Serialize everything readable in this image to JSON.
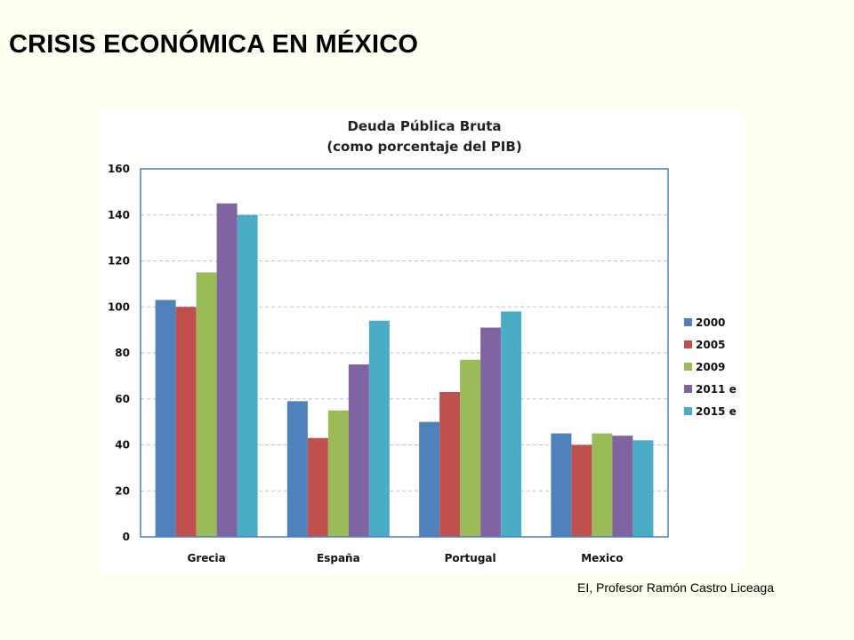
{
  "slide": {
    "title": "CRISIS ECONÓMICA EN MÉXICO",
    "credit": "EI, Profesor Ramón Castro Liceaga"
  },
  "chart_data": {
    "type": "bar",
    "title_lines": [
      "Deuda Pública Bruta",
      "(como porcentaje del PIB)"
    ],
    "categories": [
      "Grecia",
      "España",
      "Portugal",
      "Mexico"
    ],
    "series": [
      {
        "name": "2000",
        "color": "#4f81bd",
        "values": [
          103,
          59,
          50,
          45
        ]
      },
      {
        "name": "2005",
        "color": "#c0504d",
        "values": [
          100,
          43,
          63,
          40
        ]
      },
      {
        "name": "2009",
        "color": "#9bbb59",
        "values": [
          115,
          55,
          77,
          45
        ]
      },
      {
        "name": "2011 e",
        "color": "#8064a2",
        "values": [
          145,
          75,
          91,
          44
        ]
      },
      {
        "name": "2015 e",
        "color": "#4bacc6",
        "values": [
          140,
          94,
          98,
          42
        ]
      }
    ],
    "ylim": [
      0,
      160
    ],
    "yticks": [
      0,
      20,
      40,
      60,
      80,
      100,
      120,
      140,
      160
    ],
    "grid": true,
    "legend_position": "right"
  }
}
